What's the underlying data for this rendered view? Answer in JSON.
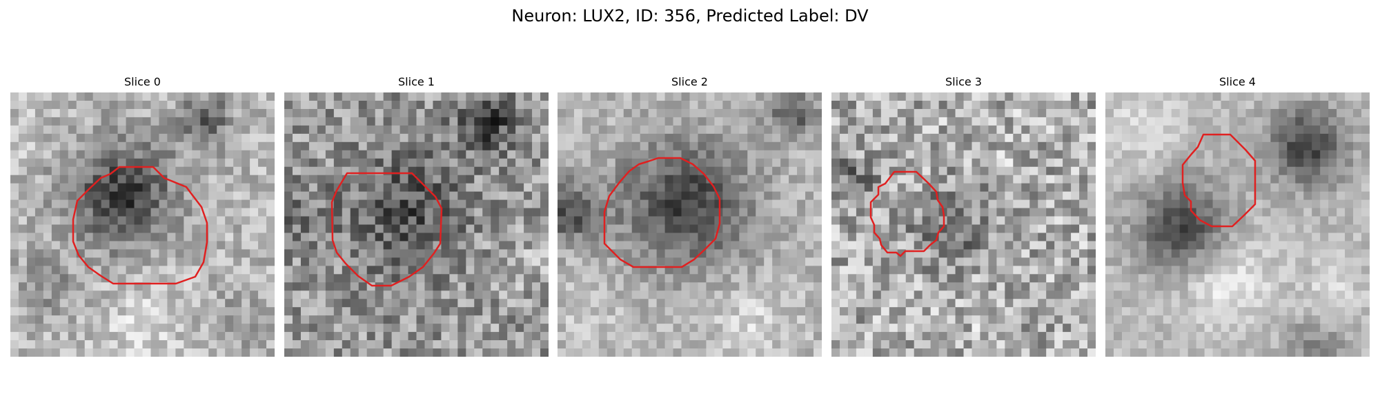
{
  "figure": {
    "title": "Neuron: LUX2, ID: 356, Predicted Label: DV"
  },
  "colors": {
    "contour": "#e02020",
    "background": "#ffffff"
  },
  "image": {
    "colormap": "gray"
  },
  "panels": [
    {
      "title": "Slice 0"
    },
    {
      "title": "Slice 1"
    },
    {
      "title": "Slice 2"
    },
    {
      "title": "Slice 3"
    },
    {
      "title": "Slice 4"
    }
  ]
}
